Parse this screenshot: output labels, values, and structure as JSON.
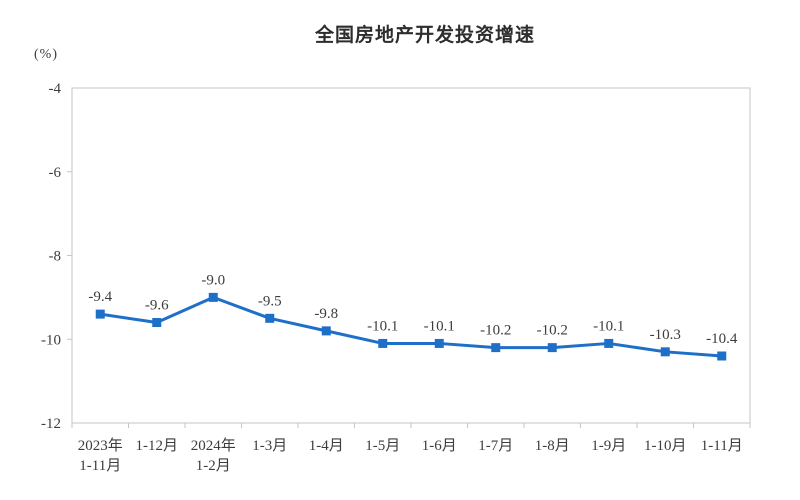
{
  "chart": {
    "title": "全国房地产开发投资增速",
    "unit": "(%)"
  },
  "chart_data": {
    "type": "line",
    "title": "全国房地产开发投资增速",
    "ylabel": "(%)",
    "xlabel": "",
    "categories": [
      "2023年\n1-11月",
      "1-12月",
      "2024年\n1-2月",
      "1-3月",
      "1-4月",
      "1-5月",
      "1-6月",
      "1-7月",
      "1-8月",
      "1-9月",
      "1-10月",
      "1-11月"
    ],
    "values": [
      -9.4,
      -9.6,
      -9.0,
      -9.5,
      -9.8,
      -10.1,
      -10.1,
      -10.2,
      -10.2,
      -10.1,
      -10.3,
      -10.4
    ],
    "labels": [
      "-9.4",
      "-9.6",
      "-9.0",
      "-9.5",
      "-9.8",
      "-10.1",
      "-10.1",
      "-10.2",
      "-10.2",
      "-10.1",
      "-10.3",
      "-10.4"
    ],
    "ylim": [
      -12,
      -4
    ],
    "yticks": [
      -4,
      -6,
      -8,
      -10,
      -12
    ],
    "grid": false,
    "legend": "none",
    "marker": "square",
    "colors": {
      "line": "#1e6fc8",
      "marker": "#1e6fc8",
      "label_text": "#3d3d3d",
      "axis": "#c6c6c6",
      "title_text": "#2d2d2d"
    }
  }
}
